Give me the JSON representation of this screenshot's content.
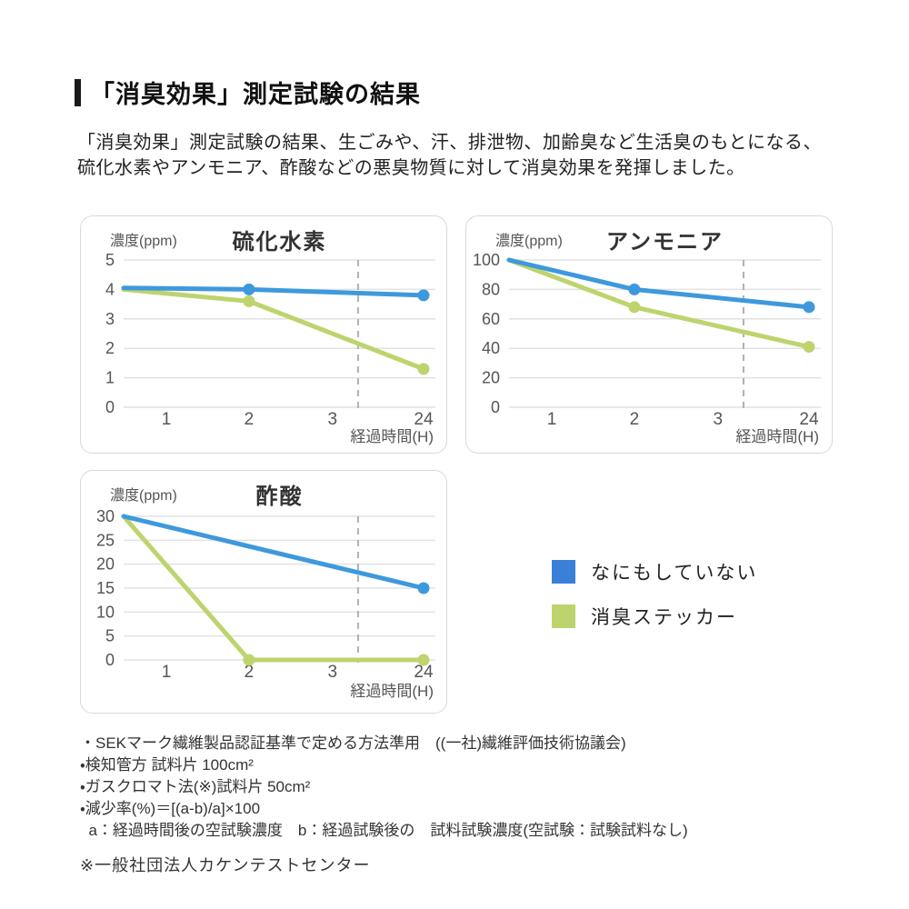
{
  "page": {
    "title": "「消臭効果」測定試験の結果",
    "description": "「消臭効果」測定試験の結果、生ごみや、汗、排泄物、加齢臭など生活臭のもとになる、\n硫化水素やアンモニア、酢酸などの悪臭物質に対して消臭効果を発揮しました。"
  },
  "colors": {
    "blue": "#3e99dc",
    "green": "#bdd46e",
    "legend_blue": "#3a80d8",
    "legend_green": "#bdd46e",
    "grid": "#e2e2e2",
    "dash": "#b0b0b0",
    "tick_text": "#555555"
  },
  "axis_layout": {
    "x_frac": {
      "0": 0.0,
      "1": 0.137,
      "2": 0.402,
      "3": 0.67,
      "24": 0.962
    },
    "break_frac": 0.752
  },
  "chart_data": [
    {
      "type": "line",
      "title": "硫化水素",
      "ylabel": "濃度(ppm)",
      "xlabel": "経過時間(H)",
      "ylim": [
        0,
        5
      ],
      "y_ticks": [
        5,
        4,
        3,
        2,
        1,
        0
      ],
      "x_ticks": [
        "1",
        "2",
        "3",
        "24"
      ],
      "axis_break_between": [
        "3",
        "24"
      ],
      "grid": true,
      "series": [
        {
          "name": "なにもしていない",
          "color_key": "blue",
          "x": [
            0,
            2,
            24
          ],
          "values": [
            4.05,
            4.0,
            3.8
          ],
          "markers": [
            false,
            true,
            true
          ]
        },
        {
          "name": "消臭ステッカー",
          "color_key": "green",
          "x": [
            0,
            2,
            24
          ],
          "values": [
            4.0,
            3.6,
            1.3
          ],
          "markers": [
            false,
            true,
            true
          ]
        }
      ]
    },
    {
      "type": "line",
      "title": "アンモニア",
      "ylabel": "濃度(ppm)",
      "xlabel": "経過時間(H)",
      "ylim": [
        0,
        100
      ],
      "y_ticks": [
        100,
        80,
        60,
        40,
        20,
        0
      ],
      "x_ticks": [
        "1",
        "2",
        "3",
        "24"
      ],
      "axis_break_between": [
        "3",
        "24"
      ],
      "grid": true,
      "series": [
        {
          "name": "なにもしていない",
          "color_key": "blue",
          "x": [
            0,
            2,
            24
          ],
          "values": [
            100,
            80,
            68
          ],
          "markers": [
            false,
            true,
            true
          ]
        },
        {
          "name": "消臭ステッカー",
          "color_key": "green",
          "x": [
            0,
            2,
            24
          ],
          "values": [
            100,
            68,
            41
          ],
          "markers": [
            false,
            true,
            true
          ]
        }
      ]
    },
    {
      "type": "line",
      "title": "酢酸",
      "ylabel": "濃度(ppm)",
      "xlabel": "経過時間(H)",
      "ylim": [
        0,
        30
      ],
      "y_ticks": [
        30,
        25,
        20,
        15,
        10,
        5,
        0
      ],
      "x_ticks": [
        "1",
        "2",
        "3",
        "24"
      ],
      "axis_break_between": [
        "3",
        "24"
      ],
      "grid": true,
      "series": [
        {
          "name": "なにもしていない",
          "color_key": "blue",
          "x": [
            0,
            24
          ],
          "values": [
            30,
            15
          ],
          "markers": [
            false,
            true
          ]
        },
        {
          "name": "消臭ステッカー",
          "color_key": "green",
          "x": [
            0,
            2,
            24
          ],
          "values": [
            30,
            0,
            0
          ],
          "markers": [
            false,
            true,
            true
          ]
        }
      ]
    }
  ],
  "legend": {
    "items": [
      {
        "label": "なにもしていない",
        "color_key": "legend_blue"
      },
      {
        "label": "消臭ステッカー",
        "color_key": "legend_green"
      }
    ]
  },
  "footnotes": [
    "・SEKマーク繊維製品認証基準で定める方法準用　((一社)繊維評価技術協議会)",
    "・検知管方 試料片 100cm²",
    "・ガスクロマト法(※)試料片 50cm²",
    "・減少率(%)＝[(a-b)/a]×100",
    "  a：経過時間後の空試験濃度　b：経過試験後の　試料試験濃度(空試験：試験試料なし)"
  ],
  "footer": "※一般社団法人カケンテストセンター"
}
